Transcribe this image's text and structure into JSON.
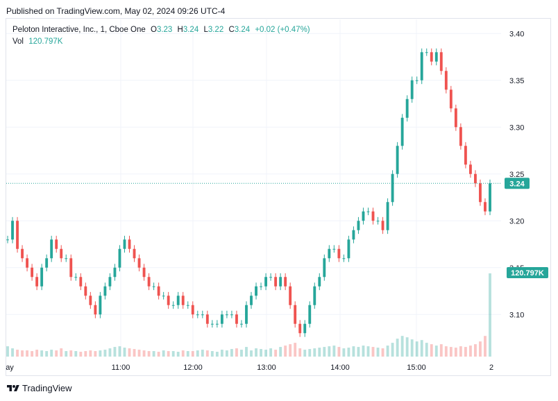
{
  "header": {
    "published": "Published on TradingView.com, May 02, 2024 09:26 UTC-4"
  },
  "legend": {
    "symbol": "Peloton Interactive, Inc., 1, Cboe One",
    "o_label": "O",
    "o_value": "3.23",
    "h_label": "H",
    "h_value": "3.24",
    "l_label": "L",
    "l_value": "3.22",
    "c_label": "C",
    "c_value": "3.24",
    "change": "+0.02 (+0.47%)",
    "vol_label": "Vol",
    "vol_value": "120.797K"
  },
  "footer": {
    "brand": "TradingView"
  },
  "colors": {
    "up": "#26a69a",
    "down": "#ef5350",
    "grid": "#f0f3fa",
    "axis_text": "#131722",
    "badge": "#26a69a"
  },
  "chart_data": {
    "type": "candlestick",
    "title": "Peloton Interactive, Inc., 1, Cboe One",
    "x_ticks": [
      "ay",
      "11:00",
      "12:00",
      "13:00",
      "14:00",
      "15:00",
      "2"
    ],
    "y_ticks": [
      "3.40",
      "3.35",
      "3.30",
      "3.25",
      "3.20",
      "3.15",
      "3.10"
    ],
    "ylim": [
      3.055,
      3.415
    ],
    "last_price": "3.24",
    "last_volume": "120.797K",
    "grid": true,
    "series": [
      {
        "name": "price",
        "close": [
          3.18,
          3.2,
          3.17,
          3.16,
          3.15,
          3.14,
          3.13,
          3.15,
          3.16,
          3.18,
          3.17,
          3.16,
          3.16,
          3.14,
          3.14,
          3.13,
          3.12,
          3.11,
          3.1,
          3.12,
          3.13,
          3.14,
          3.15,
          3.17,
          3.18,
          3.17,
          3.16,
          3.15,
          3.14,
          3.13,
          3.13,
          3.12,
          3.12,
          3.11,
          3.11,
          3.12,
          3.11,
          3.11,
          3.1,
          3.1,
          3.1,
          3.09,
          3.09,
          3.09,
          3.1,
          3.1,
          3.1,
          3.09,
          3.09,
          3.11,
          3.12,
          3.13,
          3.13,
          3.14,
          3.14,
          3.13,
          3.14,
          3.13,
          3.11,
          3.09,
          3.08,
          3.09,
          3.11,
          3.13,
          3.14,
          3.16,
          3.17,
          3.17,
          3.16,
          3.16,
          3.18,
          3.19,
          3.2,
          3.21,
          3.21,
          3.2,
          3.2,
          3.19,
          3.22,
          3.25,
          3.28,
          3.31,
          3.33,
          3.35,
          3.35,
          3.38,
          3.38,
          3.37,
          3.38,
          3.36,
          3.34,
          3.32,
          3.3,
          3.28,
          3.26,
          3.25,
          3.24,
          3.22,
          3.21,
          3.24
        ],
        "volume_k": [
          15,
          12,
          10,
          9,
          9,
          8,
          10,
          9,
          8,
          10,
          9,
          12,
          8,
          9,
          8,
          7,
          8,
          9,
          8,
          9,
          10,
          12,
          14,
          15,
          13,
          12,
          11,
          10,
          9,
          8,
          8,
          7,
          9,
          8,
          8,
          7,
          9,
          8,
          8,
          9,
          10,
          9,
          8,
          7,
          10,
          9,
          11,
          12,
          10,
          14,
          9,
          12,
          11,
          10,
          12,
          10,
          14,
          16,
          18,
          20,
          12,
          10,
          11,
          12,
          13,
          14,
          15,
          16,
          14,
          12,
          13,
          15,
          14,
          16,
          15,
          14,
          13,
          12,
          16,
          20,
          26,
          30,
          28,
          25,
          22,
          24,
          20,
          18,
          16,
          18,
          15,
          14,
          13,
          15,
          14,
          16,
          18,
          22,
          30,
          120.797
        ]
      }
    ]
  }
}
